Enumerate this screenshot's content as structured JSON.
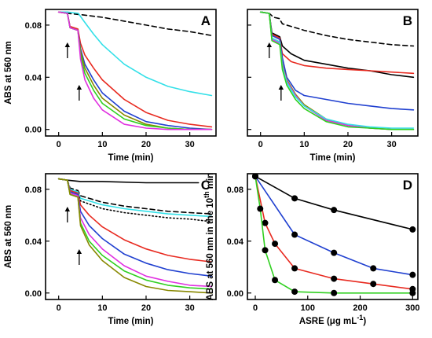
{
  "chart_data": [
    {
      "panel": "A",
      "type": "line",
      "xlabel": "Time (min)",
      "ylabel": "ABS at 560 nm",
      "xlim": [
        -3,
        36
      ],
      "ylim": [
        -0.005,
        0.092
      ],
      "xticks": [
        0,
        10,
        20,
        30
      ],
      "yticks": [
        0.0,
        0.04,
        0.08
      ],
      "ytick_labels": [
        "0.00",
        "0.04",
        "0.08"
      ],
      "arrows_at_x": [
        2,
        4.7
      ],
      "series": [
        {
          "color": "#000000",
          "dash": "dashed",
          "x": [
            0,
            2,
            5,
            10,
            15,
            20,
            25,
            30,
            35
          ],
          "y": [
            0.09,
            0.089,
            0.088,
            0.086,
            0.083,
            0.08,
            0.077,
            0.075,
            0.072
          ]
        },
        {
          "color": "#33e0e8",
          "x": [
            0,
            2,
            4.5,
            6,
            8,
            10,
            15,
            20,
            25,
            30,
            35
          ],
          "y": [
            0.09,
            0.09,
            0.089,
            0.082,
            0.073,
            0.065,
            0.05,
            0.04,
            0.033,
            0.029,
            0.026
          ]
        },
        {
          "color": "#e82a20",
          "x": [
            0,
            2,
            2.6,
            4.4,
            5,
            6,
            8,
            10,
            15,
            20,
            25,
            30,
            35
          ],
          "y": [
            0.09,
            0.089,
            0.079,
            0.077,
            0.066,
            0.057,
            0.047,
            0.038,
            0.023,
            0.013,
            0.007,
            0.004,
            0.002
          ]
        },
        {
          "color": "#2040d0",
          "x": [
            0,
            2,
            2.6,
            4.4,
            5,
            6,
            8,
            10,
            15,
            20,
            25,
            30,
            35
          ],
          "y": [
            0.09,
            0.089,
            0.078,
            0.076,
            0.062,
            0.05,
            0.038,
            0.028,
            0.014,
            0.006,
            0.003,
            0.001,
            0.0
          ]
        },
        {
          "color": "#888800",
          "x": [
            0,
            2,
            2.6,
            4.4,
            5,
            6,
            8,
            10,
            15,
            20,
            25,
            30,
            35
          ],
          "y": [
            0.09,
            0.089,
            0.078,
            0.076,
            0.06,
            0.047,
            0.034,
            0.024,
            0.011,
            0.004,
            0.001,
            0.0,
            0.0
          ]
        },
        {
          "color": "#30d020",
          "x": [
            0,
            2,
            2.6,
            4.4,
            5,
            6,
            8,
            10,
            15,
            20,
            25,
            30,
            35
          ],
          "y": [
            0.09,
            0.089,
            0.078,
            0.076,
            0.057,
            0.043,
            0.03,
            0.02,
            0.008,
            0.003,
            0.001,
            0.0,
            0.0
          ]
        },
        {
          "color": "#e030e0",
          "x": [
            0,
            2,
            2.6,
            4.4,
            5,
            6,
            8,
            10,
            15,
            20,
            25,
            30,
            35
          ],
          "y": [
            0.09,
            0.089,
            0.078,
            0.076,
            0.054,
            0.038,
            0.024,
            0.015,
            0.004,
            0.001,
            0.0,
            0.0,
            0.0
          ]
        }
      ]
    },
    {
      "panel": "B",
      "type": "line",
      "xlabel": "Time (min)",
      "ylabel": "",
      "xlim": [
        -3,
        36
      ],
      "ylim": [
        -0.005,
        0.092
      ],
      "xticks": [
        0,
        10,
        20,
        30
      ],
      "yticks": [
        0.0,
        0.04,
        0.08
      ],
      "ytick_labels": [
        "",
        "",
        ""
      ],
      "arrows_at_x": [
        2,
        4.7
      ],
      "series": [
        {
          "color": "#000000",
          "dash": "dashed",
          "x": [
            0,
            2,
            3,
            4.3,
            5,
            10,
            15,
            20,
            25,
            30,
            35
          ],
          "y": [
            0.09,
            0.089,
            0.086,
            0.085,
            0.081,
            0.076,
            0.072,
            0.069,
            0.067,
            0.065,
            0.064
          ]
        },
        {
          "color": "#000000",
          "x": [
            0,
            2,
            2.6,
            4.4,
            5,
            7,
            10,
            15,
            20,
            25,
            30,
            35
          ],
          "y": [
            0.09,
            0.089,
            0.074,
            0.071,
            0.064,
            0.058,
            0.053,
            0.05,
            0.047,
            0.045,
            0.042,
            0.04
          ]
        },
        {
          "color": "#e82a20",
          "x": [
            0,
            2,
            2.6,
            4.4,
            5,
            7,
            10,
            15,
            20,
            25,
            30,
            35
          ],
          "y": [
            0.09,
            0.089,
            0.073,
            0.07,
            0.058,
            0.052,
            0.049,
            0.047,
            0.046,
            0.045,
            0.044,
            0.043
          ]
        },
        {
          "color": "#2040d0",
          "x": [
            0,
            2,
            2.6,
            4.4,
            5,
            6,
            8,
            10,
            15,
            20,
            25,
            30,
            35
          ],
          "y": [
            0.09,
            0.089,
            0.072,
            0.069,
            0.055,
            0.04,
            0.03,
            0.026,
            0.023,
            0.02,
            0.018,
            0.016,
            0.015
          ]
        },
        {
          "color": "#888800",
          "x": [
            0,
            2,
            2.6,
            4.4,
            5,
            6,
            8,
            10,
            15,
            20,
            25,
            30,
            35
          ],
          "y": [
            0.09,
            0.089,
            0.07,
            0.067,
            0.05,
            0.038,
            0.027,
            0.019,
            0.008,
            0.003,
            0.001,
            0.0,
            0.0
          ]
        },
        {
          "color": "#e030e0",
          "x": [
            0,
            2,
            2.6,
            4.4,
            5,
            6,
            8,
            10,
            15,
            20,
            25,
            30,
            35
          ],
          "y": [
            0.09,
            0.089,
            0.069,
            0.066,
            0.049,
            0.037,
            0.026,
            0.018,
            0.007,
            0.003,
            0.001,
            0.0,
            0.0
          ]
        },
        {
          "color": "#33e0e8",
          "x": [
            0,
            2,
            2.6,
            4.4,
            5,
            6,
            8,
            10,
            15,
            20,
            25,
            30,
            35
          ],
          "y": [
            0.09,
            0.089,
            0.07,
            0.067,
            0.048,
            0.036,
            0.025,
            0.018,
            0.008,
            0.004,
            0.002,
            0.001,
            0.001
          ]
        },
        {
          "color": "#30d020",
          "x": [
            0,
            2,
            2.6,
            4.4,
            5,
            6,
            8,
            10,
            15,
            20,
            25,
            30,
            35
          ],
          "y": [
            0.09,
            0.089,
            0.068,
            0.065,
            0.046,
            0.034,
            0.023,
            0.016,
            0.006,
            0.002,
            0.001,
            0.0,
            0.0
          ]
        }
      ]
    },
    {
      "panel": "C",
      "type": "line",
      "xlabel": "Time (min)",
      "ylabel": "ABS at 560 nm",
      "xlim": [
        -3,
        36
      ],
      "ylim": [
        -0.005,
        0.092
      ],
      "xticks": [
        0,
        10,
        20,
        30
      ],
      "yticks": [
        0.0,
        0.04,
        0.08
      ],
      "ytick_labels": [
        "0.00",
        "0.04",
        "0.08"
      ],
      "arrows_at_x": [
        2,
        4.7
      ],
      "series": [
        {
          "color": "#000000",
          "x": [
            0,
            2,
            5,
            10,
            20,
            32
          ],
          "y": [
            0.088,
            0.087,
            0.086,
            0.086,
            0.085,
            0.085
          ]
        },
        {
          "color": "#000000",
          "dash": "dashed",
          "x": [
            0,
            2,
            2.6,
            4.4,
            5,
            10,
            15,
            20,
            25,
            30,
            35
          ],
          "y": [
            0.088,
            0.087,
            0.081,
            0.079,
            0.075,
            0.07,
            0.067,
            0.065,
            0.063,
            0.062,
            0.061
          ]
        },
        {
          "color": "#33e0e8",
          "x": [
            0,
            2,
            2.6,
            4.4,
            5,
            10,
            15,
            20,
            25,
            30,
            35
          ],
          "y": [
            0.088,
            0.087,
            0.08,
            0.078,
            0.073,
            0.068,
            0.065,
            0.063,
            0.061,
            0.06,
            0.059
          ]
        },
        {
          "color": "#000000",
          "dash": "dotted",
          "x": [
            0,
            2,
            2.6,
            4.4,
            5,
            10,
            15,
            20,
            25,
            30,
            35
          ],
          "y": [
            0.088,
            0.087,
            0.079,
            0.077,
            0.071,
            0.065,
            0.062,
            0.06,
            0.058,
            0.057,
            0.055
          ]
        },
        {
          "color": "#e82a20",
          "x": [
            0,
            2,
            2.6,
            4.4,
            5,
            7,
            10,
            15,
            20,
            25,
            30,
            35
          ],
          "y": [
            0.088,
            0.087,
            0.079,
            0.077,
            0.068,
            0.06,
            0.051,
            0.041,
            0.034,
            0.029,
            0.026,
            0.024
          ]
        },
        {
          "color": "#2040d0",
          "x": [
            0,
            2,
            2.6,
            4.4,
            5,
            7,
            10,
            15,
            20,
            25,
            30,
            35
          ],
          "y": [
            0.088,
            0.087,
            0.078,
            0.076,
            0.063,
            0.052,
            0.042,
            0.03,
            0.023,
            0.018,
            0.015,
            0.013
          ]
        },
        {
          "color": "#e030e0",
          "x": [
            0,
            2,
            2.6,
            4.4,
            5,
            7,
            10,
            15,
            20,
            25,
            30,
            35
          ],
          "y": [
            0.088,
            0.087,
            0.077,
            0.075,
            0.058,
            0.045,
            0.034,
            0.021,
            0.013,
            0.009,
            0.006,
            0.005
          ]
        },
        {
          "color": "#30d020",
          "x": [
            0,
            2,
            2.6,
            4.4,
            5,
            7,
            10,
            15,
            20,
            25,
            30,
            35
          ],
          "y": [
            0.088,
            0.087,
            0.076,
            0.074,
            0.054,
            0.04,
            0.029,
            0.017,
            0.01,
            0.006,
            0.004,
            0.003
          ]
        },
        {
          "color": "#888800",
          "x": [
            0,
            2,
            2.6,
            4.4,
            5,
            7,
            10,
            15,
            20,
            25,
            30,
            35
          ],
          "y": [
            0.088,
            0.087,
            0.076,
            0.074,
            0.052,
            0.037,
            0.025,
            0.012,
            0.005,
            0.002,
            0.001,
            0.0
          ]
        }
      ]
    },
    {
      "panel": "D",
      "type": "line",
      "xlabel_main": "ASRE (",
      "xlabel_unit": "μg mL",
      "xlabel_sup": "-1",
      "xlabel_end": ")",
      "ylabel_main": "ABS at 560 nm in the 10",
      "ylabel_sup": "th",
      "ylabel_end": " min",
      "xlim": [
        -15,
        310
      ],
      "ylim": [
        -0.005,
        0.092
      ],
      "xticks": [
        0,
        100,
        200,
        300
      ],
      "yticks": [
        0.0,
        0.04,
        0.08
      ],
      "ytick_labels": [
        "0.00",
        "0.04",
        "0.08"
      ],
      "markers": true,
      "series": [
        {
          "color": "#000000",
          "x": [
            0,
            75,
            150,
            300
          ],
          "y": [
            0.09,
            0.073,
            0.064,
            0.049
          ]
        },
        {
          "color": "#2040d0",
          "x": [
            0,
            75,
            150,
            225,
            300
          ],
          "y": [
            0.09,
            0.045,
            0.031,
            0.019,
            0.014
          ]
        },
        {
          "color": "#e82a20",
          "x": [
            0,
            18.75,
            37.5,
            75,
            150,
            225,
            300
          ],
          "y": [
            0.09,
            0.054,
            0.038,
            0.019,
            0.011,
            0.007,
            0.003
          ]
        },
        {
          "color": "#30d020",
          "x": [
            0,
            9.375,
            18.75,
            37.5,
            75,
            150,
            300
          ],
          "y": [
            0.09,
            0.065,
            0.033,
            0.01,
            0.001,
            0.0,
            0.0
          ]
        }
      ]
    }
  ]
}
